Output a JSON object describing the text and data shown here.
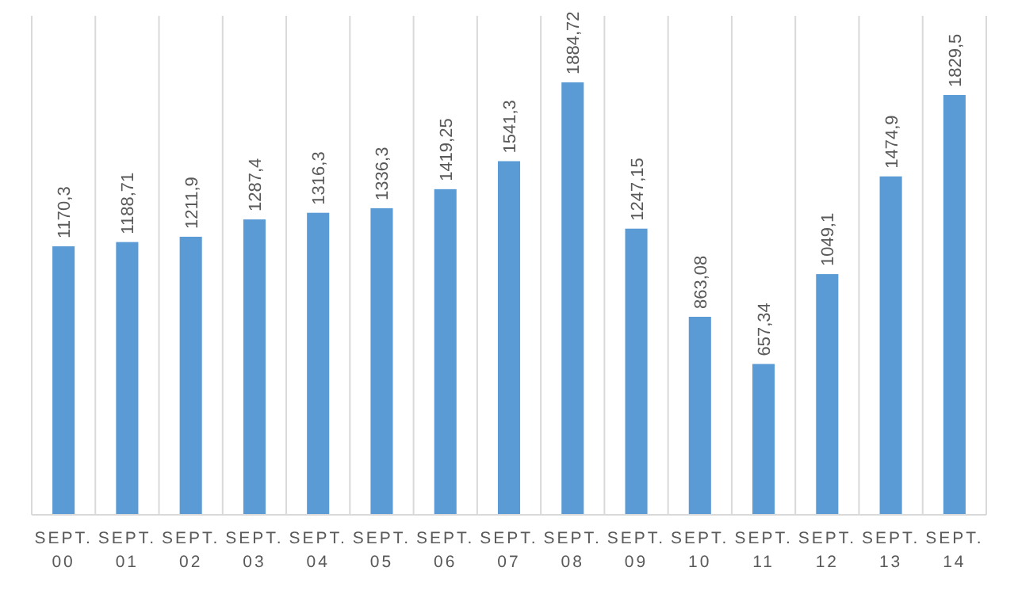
{
  "chart_data": {
    "type": "bar",
    "categories": [
      "SEPT. 00",
      "SEPT. 01",
      "SEPT. 02",
      "SEPT. 03",
      "SEPT. 04",
      "SEPT. 05",
      "SEPT. 06",
      "SEPT. 07",
      "SEPT. 08",
      "SEPT. 09",
      "SEPT. 10",
      "SEPT. 11",
      "SEPT. 12",
      "SEPT. 13",
      "SEPT. 14"
    ],
    "values": [
      1170.3,
      1188.71,
      1211.9,
      1287.4,
      1316.3,
      1336.3,
      1419.25,
      1541.3,
      1884.72,
      1247.15,
      863.08,
      657.34,
      1049.1,
      1474.9,
      1829.5
    ],
    "value_labels": [
      "1170,3",
      "1188,71",
      "1211,9",
      "1287,4",
      "1316,3",
      "1336,3",
      "1419,25",
      "1541,3",
      "1884,72",
      "1247,15",
      "863,08",
      "657,34",
      "1049,1",
      "1474,9",
      "1829,5"
    ],
    "color": "#5b9bd5",
    "grid": "x"
  }
}
